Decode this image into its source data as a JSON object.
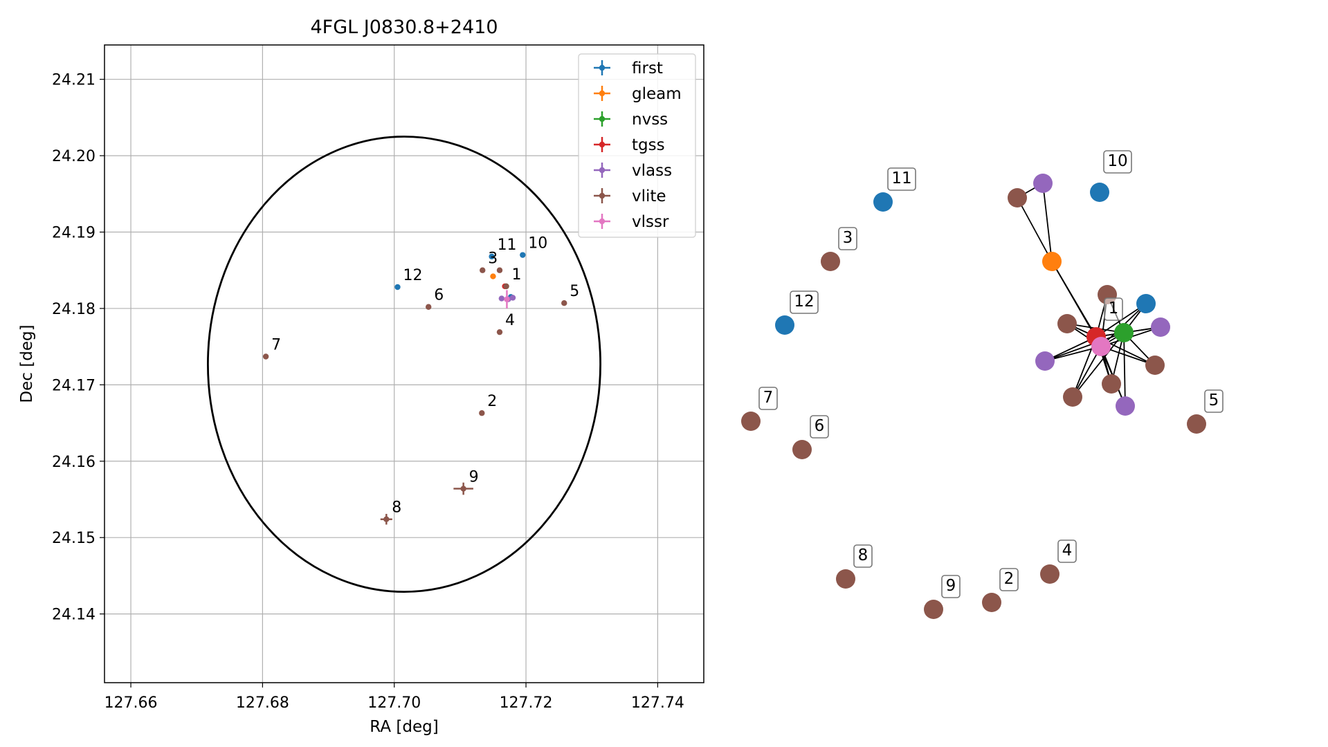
{
  "chart_data": [
    {
      "type": "scatter",
      "title": "4FGL J0830.8+2410",
      "xlabel": "RA [deg]",
      "ylabel": "Dec [deg]",
      "xlim": [
        127.656,
        127.747
      ],
      "ylim": [
        24.131,
        24.2145
      ],
      "x_ticks": [
        "127.66",
        "127.68",
        "127.70",
        "127.72",
        "127.74"
      ],
      "x_tick_values": [
        127.66,
        127.68,
        127.7,
        127.72,
        127.74
      ],
      "y_ticks": [
        "24.14",
        "24.15",
        "24.16",
        "24.17",
        "24.18",
        "24.19",
        "24.20",
        "24.21"
      ],
      "y_tick_values": [
        24.14,
        24.15,
        24.16,
        24.17,
        24.18,
        24.19,
        24.2,
        24.21
      ],
      "grid": true,
      "legend_position": "top-right",
      "circle": {
        "center_ra": 127.7015,
        "center_dec": 24.1727,
        "radius_deg": 0.0298
      },
      "series": [
        {
          "name": "first",
          "color": "#1f77b4",
          "points": [
            {
              "ra": 127.7195,
              "dec": 24.187,
              "err_ra": 0,
              "err_dec": 0
            },
            {
              "ra": 127.7148,
              "dec": 24.1868,
              "err_ra": 0,
              "err_dec": 0
            },
            {
              "ra": 127.7005,
              "dec": 24.1828,
              "err_ra": 0,
              "err_dec": 0
            },
            {
              "ra": 127.7177,
              "dec": 24.1815,
              "err_ra": 0,
              "err_dec": 0
            }
          ]
        },
        {
          "name": "gleam",
          "color": "#ff7f0e",
          "points": [
            {
              "ra": 127.715,
              "dec": 24.1842,
              "err_ra": 0,
              "err_dec": 0
            }
          ]
        },
        {
          "name": "nvss",
          "color": "#2ca02c",
          "points": [
            {
              "ra": 127.717,
              "dec": 24.1829,
              "err_ra": 0,
              "err_dec": 0
            }
          ]
        },
        {
          "name": "tgss",
          "color": "#d62728",
          "points": [
            {
              "ra": 127.7168,
              "dec": 24.1829,
              "err_ra": 0,
              "err_dec": 0
            }
          ]
        },
        {
          "name": "vlass",
          "color": "#9467bd",
          "points": [
            {
              "ra": 127.7163,
              "dec": 24.1813,
              "err_ra": 0,
              "err_dec": 0
            },
            {
              "ra": 127.7173,
              "dec": 24.1812,
              "err_ra": 0,
              "err_dec": 0
            },
            {
              "ra": 127.718,
              "dec": 24.1814,
              "err_ra": 0,
              "err_dec": 0
            }
          ]
        },
        {
          "name": "vlite",
          "color": "#8c564b",
          "points": [
            {
              "ra": 127.717,
              "dec": 24.1829,
              "err_ra": 0,
              "err_dec": 0
            },
            {
              "ra": 127.7133,
              "dec": 24.1663,
              "err_ra": 0,
              "err_dec": 0
            },
            {
              "ra": 127.7134,
              "dec": 24.185,
              "err_ra": 0,
              "err_dec": 0
            },
            {
              "ra": 127.716,
              "dec": 24.1769,
              "err_ra": 0,
              "err_dec": 0
            },
            {
              "ra": 127.7258,
              "dec": 24.1807,
              "err_ra": 0,
              "err_dec": 0
            },
            {
              "ra": 127.7052,
              "dec": 24.1802,
              "err_ra": 0,
              "err_dec": 0
            },
            {
              "ra": 127.6805,
              "dec": 24.1737,
              "err_ra": 0,
              "err_dec": 0
            },
            {
              "ra": 127.6988,
              "dec": 24.1524,
              "err_ra": 0.0009,
              "err_dec": 0.0007
            },
            {
              "ra": 127.7105,
              "dec": 24.1564,
              "err_ra": 0.0015,
              "err_dec": 0.0008
            },
            {
              "ra": 127.716,
              "dec": 24.185,
              "err_ra": 0,
              "err_dec": 0
            }
          ]
        },
        {
          "name": "vlssr",
          "color": "#e377c2",
          "points": [
            {
              "ra": 127.7171,
              "dec": 24.1812,
              "err_ra": 0.0003,
              "err_dec": 0.0012
            }
          ]
        }
      ],
      "annotations": [
        {
          "text": "1",
          "ra": 127.717,
          "dec": 24.1829
        },
        {
          "text": "2",
          "ra": 127.7133,
          "dec": 24.1663
        },
        {
          "text": "3",
          "ra": 127.7134,
          "dec": 24.185
        },
        {
          "text": "4",
          "ra": 127.716,
          "dec": 24.1769
        },
        {
          "text": "5",
          "ra": 127.7258,
          "dec": 24.1807
        },
        {
          "text": "6",
          "ra": 127.7052,
          "dec": 24.1802
        },
        {
          "text": "7",
          "ra": 127.6805,
          "dec": 24.1737
        },
        {
          "text": "8",
          "ra": 127.6988,
          "dec": 24.1524
        },
        {
          "text": "9",
          "ra": 127.7105,
          "dec": 24.1564
        },
        {
          "text": "10",
          "ra": 127.7195,
          "dec": 24.187
        },
        {
          "text": "11",
          "ra": 127.7148,
          "dec": 24.1868
        },
        {
          "text": "12",
          "ra": 127.7005,
          "dec": 24.1828
        }
      ]
    },
    {
      "type": "network",
      "labels": [
        "1",
        "2",
        "3",
        "4",
        "5",
        "6",
        "7",
        "8",
        "9",
        "10",
        "11",
        "12"
      ],
      "nodes": [
        {
          "id": "t1",
          "catalog": "tgss",
          "color": "#d62728",
          "label": "1"
        },
        {
          "id": "p1",
          "catalog": "vlssr",
          "color": "#e377c2"
        },
        {
          "id": "n1",
          "catalog": "nvss",
          "color": "#2ca02c"
        },
        {
          "id": "g1",
          "catalog": "gleam",
          "color": "#ff7f0e"
        },
        {
          "id": "fA",
          "catalog": "first",
          "color": "#1f77b4"
        },
        {
          "id": "vA",
          "catalog": "vlass",
          "color": "#9467bd"
        },
        {
          "id": "vB",
          "catalog": "vlass",
          "color": "#9467bd"
        },
        {
          "id": "vC",
          "catalog": "vlass",
          "color": "#9467bd"
        },
        {
          "id": "vD",
          "catalog": "vlass",
          "color": "#9467bd"
        },
        {
          "id": "bA",
          "catalog": "vlite",
          "color": "#8c564b"
        },
        {
          "id": "bB",
          "catalog": "vlite",
          "color": "#8c564b"
        },
        {
          "id": "bC",
          "catalog": "vlite",
          "color": "#8c564b"
        },
        {
          "id": "bD",
          "catalog": "vlite",
          "color": "#8c564b"
        },
        {
          "id": "bE",
          "catalog": "vlite",
          "color": "#8c564b"
        },
        {
          "id": "bF",
          "catalog": "vlite",
          "color": "#8c564b"
        },
        {
          "id": "n10",
          "catalog": "first",
          "color": "#1f77b4",
          "label": "10"
        },
        {
          "id": "n11",
          "catalog": "first",
          "color": "#1f77b4",
          "label": "11"
        },
        {
          "id": "n12",
          "catalog": "first",
          "color": "#1f77b4",
          "label": "12"
        },
        {
          "id": "n3",
          "catalog": "vlite",
          "color": "#8c564b",
          "label": "3"
        },
        {
          "id": "n7",
          "catalog": "vlite",
          "color": "#8c564b",
          "label": "7"
        },
        {
          "id": "n6",
          "catalog": "vlite",
          "color": "#8c564b",
          "label": "6"
        },
        {
          "id": "n5",
          "catalog": "vlite",
          "color": "#8c564b",
          "label": "5"
        },
        {
          "id": "n8",
          "catalog": "vlite",
          "color": "#8c564b",
          "label": "8"
        },
        {
          "id": "n9",
          "catalog": "vlite",
          "color": "#8c564b",
          "label": "9"
        },
        {
          "id": "n2",
          "catalog": "vlite",
          "color": "#8c564b",
          "label": "2"
        },
        {
          "id": "n4",
          "catalog": "vlite",
          "color": "#8c564b",
          "label": "4"
        }
      ],
      "edges": [
        [
          "bA",
          "vA"
        ],
        [
          "bA",
          "g1"
        ],
        [
          "vA",
          "g1"
        ],
        [
          "g1",
          "t1"
        ],
        [
          "g1",
          "p1"
        ],
        [
          "t1",
          "p1"
        ],
        [
          "t1",
          "n1"
        ],
        [
          "p1",
          "n1"
        ],
        [
          "t1",
          "fA"
        ],
        [
          "p1",
          "fA"
        ],
        [
          "n1",
          "fA"
        ],
        [
          "t1",
          "vB"
        ],
        [
          "p1",
          "vB"
        ],
        [
          "n1",
          "vB"
        ],
        [
          "t1",
          "vC"
        ],
        [
          "p1",
          "vC"
        ],
        [
          "n1",
          "vC"
        ],
        [
          "t1",
          "vD"
        ],
        [
          "p1",
          "vD"
        ],
        [
          "n1",
          "vD"
        ],
        [
          "t1",
          "bB"
        ],
        [
          "p1",
          "bB"
        ],
        [
          "n1",
          "bB"
        ],
        [
          "t1",
          "bC"
        ],
        [
          "p1",
          "bC"
        ],
        [
          "n1",
          "bC"
        ],
        [
          "t1",
          "bD"
        ],
        [
          "p1",
          "bD"
        ],
        [
          "n1",
          "bD"
        ],
        [
          "t1",
          "bE"
        ],
        [
          "p1",
          "bE"
        ],
        [
          "n1",
          "bE"
        ],
        [
          "t1",
          "bF"
        ],
        [
          "p1",
          "bF"
        ],
        [
          "n1",
          "bF"
        ]
      ]
    }
  ]
}
